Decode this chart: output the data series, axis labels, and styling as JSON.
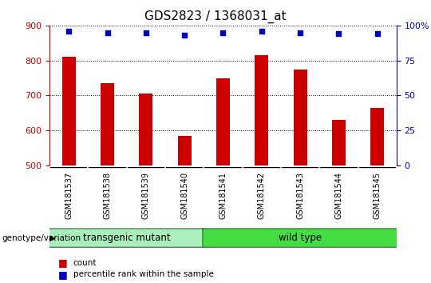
{
  "title": "GDS2823 / 1368031_at",
  "samples": [
    "GSM181537",
    "GSM181538",
    "GSM181539",
    "GSM181540",
    "GSM181541",
    "GSM181542",
    "GSM181543",
    "GSM181544",
    "GSM181545"
  ],
  "counts": [
    810,
    735,
    705,
    585,
    750,
    815,
    775,
    630,
    665
  ],
  "percentile_ranks": [
    96,
    95,
    95,
    93,
    95,
    96,
    95,
    94,
    94
  ],
  "ylim_left": [
    500,
    900
  ],
  "ylim_right": [
    0,
    100
  ],
  "yticks_left": [
    500,
    600,
    700,
    800,
    900
  ],
  "yticks_right": [
    0,
    25,
    50,
    75,
    100
  ],
  "ytick_right_labels": [
    "0",
    "25",
    "50",
    "75",
    "100%"
  ],
  "bar_color": "#cc0000",
  "dot_color": "#0000bb",
  "group1_label": "transgenic mutant",
  "group1_count": 4,
  "group2_label": "wild type",
  "group2_count": 5,
  "group_label_prefix": "genotype/variation",
  "group1_color": "#aaeebb",
  "group2_color": "#44dd44",
  "sample_bg_color": "#cccccc",
  "legend_count_label": "count",
  "legend_pct_label": "percentile rank within the sample",
  "title_fontsize": 11,
  "axis_label_color_left": "#cc0000",
  "axis_label_color_right": "#0000bb",
  "bar_width": 0.35
}
